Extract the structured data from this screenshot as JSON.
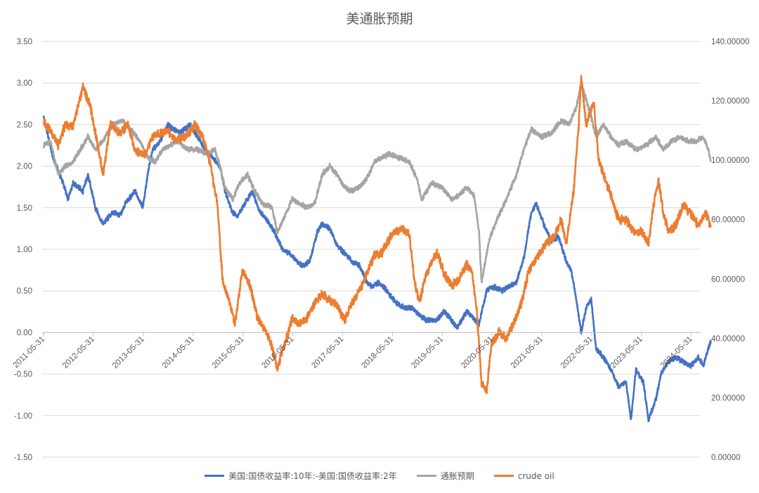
{
  "chart_data": {
    "type": "line",
    "title": "美通胀预期",
    "x_tick_labels": [
      "2011-05-31",
      "2012-05-31",
      "2013-05-31",
      "2014-05-31",
      "2015-05-31",
      "2016-05-31",
      "2017-05-31",
      "2018-05-31",
      "2019-05-31",
      "2020-05-31",
      "2021-05-31",
      "2022-05-31",
      "2023-05-31",
      "2024-05-31"
    ],
    "y_left": {
      "ticks": [
        "3.50",
        "3.00",
        "2.50",
        "2.00",
        "1.50",
        "1.00",
        "0.50",
        "0.00",
        "-0.50",
        "-1.00",
        "-1.50"
      ],
      "ylim": [
        -1.5,
        3.5
      ]
    },
    "y_right": {
      "ticks": [
        "140.00000",
        "120.00000",
        "100.00000",
        "80.00000",
        "60.00000",
        "40.00000",
        "20.00000",
        "0.00000"
      ],
      "ylim": [
        0,
        140
      ]
    },
    "grid": true,
    "legend_position": "bottom",
    "series": [
      {
        "name": "美国:国债收益率:10年:-美国:国债收益率:2年",
        "axis": "left",
        "color": "#4472C4",
        "points": [
          [
            2011.41,
            2.6
          ],
          [
            2011.6,
            2.1
          ],
          [
            2011.8,
            1.8
          ],
          [
            2011.9,
            1.6
          ],
          [
            2012.0,
            1.8
          ],
          [
            2012.2,
            1.7
          ],
          [
            2012.3,
            1.9
          ],
          [
            2012.45,
            1.5
          ],
          [
            2012.6,
            1.3
          ],
          [
            2012.8,
            1.45
          ],
          [
            2012.95,
            1.4
          ],
          [
            2013.05,
            1.55
          ],
          [
            2013.25,
            1.7
          ],
          [
            2013.4,
            1.5
          ],
          [
            2013.5,
            1.9
          ],
          [
            2013.6,
            2.2
          ],
          [
            2013.75,
            2.3
          ],
          [
            2013.9,
            2.5
          ],
          [
            2014.0,
            2.45
          ],
          [
            2014.15,
            2.4
          ],
          [
            2014.35,
            2.5
          ],
          [
            2014.5,
            2.35
          ],
          [
            2014.65,
            2.2
          ],
          [
            2014.8,
            2.1
          ],
          [
            2014.95,
            2.0
          ],
          [
            2015.05,
            1.7
          ],
          [
            2015.2,
            1.45
          ],
          [
            2015.3,
            1.4
          ],
          [
            2015.45,
            1.55
          ],
          [
            2015.6,
            1.7
          ],
          [
            2015.75,
            1.45
          ],
          [
            2015.9,
            1.35
          ],
          [
            2016.05,
            1.2
          ],
          [
            2016.2,
            1.0
          ],
          [
            2016.35,
            0.95
          ],
          [
            2016.5,
            0.85
          ],
          [
            2016.6,
            0.8
          ],
          [
            2016.75,
            0.85
          ],
          [
            2016.9,
            1.2
          ],
          [
            2017.0,
            1.3
          ],
          [
            2017.15,
            1.25
          ],
          [
            2017.3,
            1.05
          ],
          [
            2017.45,
            0.95
          ],
          [
            2017.6,
            0.85
          ],
          [
            2017.75,
            0.8
          ],
          [
            2017.9,
            0.6
          ],
          [
            2018.0,
            0.55
          ],
          [
            2018.15,
            0.6
          ],
          [
            2018.3,
            0.5
          ],
          [
            2018.5,
            0.35
          ],
          [
            2018.65,
            0.3
          ],
          [
            2018.8,
            0.3
          ],
          [
            2018.95,
            0.2
          ],
          [
            2019.1,
            0.15
          ],
          [
            2019.3,
            0.15
          ],
          [
            2019.45,
            0.25
          ],
          [
            2019.6,
            0.15
          ],
          [
            2019.7,
            0.05
          ],
          [
            2019.8,
            0.15
          ],
          [
            2019.9,
            0.25
          ],
          [
            2020.0,
            0.2
          ],
          [
            2020.15,
            0.1
          ],
          [
            2020.3,
            0.5
          ],
          [
            2020.45,
            0.55
          ],
          [
            2020.6,
            0.5
          ],
          [
            2020.75,
            0.55
          ],
          [
            2020.9,
            0.6
          ],
          [
            2021.05,
            0.9
          ],
          [
            2021.2,
            1.45
          ],
          [
            2021.3,
            1.55
          ],
          [
            2021.45,
            1.3
          ],
          [
            2021.6,
            1.1
          ],
          [
            2021.75,
            1.15
          ],
          [
            2021.9,
            0.85
          ],
          [
            2022.0,
            0.75
          ],
          [
            2022.1,
            0.4
          ],
          [
            2022.2,
            0.0
          ],
          [
            2022.3,
            0.3
          ],
          [
            2022.4,
            0.4
          ],
          [
            2022.5,
            -0.2
          ],
          [
            2022.65,
            -0.3
          ],
          [
            2022.8,
            -0.45
          ],
          [
            2022.95,
            -0.65
          ],
          [
            2023.1,
            -0.6
          ],
          [
            2023.2,
            -1.05
          ],
          [
            2023.3,
            -0.45
          ],
          [
            2023.45,
            -0.6
          ],
          [
            2023.55,
            -1.05
          ],
          [
            2023.7,
            -0.8
          ],
          [
            2023.8,
            -0.5
          ],
          [
            2023.95,
            -0.35
          ],
          [
            2024.1,
            -0.3
          ],
          [
            2024.25,
            -0.35
          ],
          [
            2024.4,
            -0.4
          ],
          [
            2024.55,
            -0.3
          ],
          [
            2024.65,
            -0.4
          ],
          [
            2024.75,
            -0.2
          ],
          [
            2024.8,
            -0.1
          ]
        ]
      },
      {
        "name": "通胀预期",
        "axis": "left",
        "color": "#A5A5A5",
        "points": [
          [
            2011.41,
            2.25
          ],
          [
            2011.55,
            2.3
          ],
          [
            2011.7,
            1.9
          ],
          [
            2011.85,
            2.0
          ],
          [
            2012.0,
            2.05
          ],
          [
            2012.15,
            2.2
          ],
          [
            2012.3,
            2.35
          ],
          [
            2012.45,
            2.2
          ],
          [
            2012.6,
            2.3
          ],
          [
            2012.8,
            2.5
          ],
          [
            2013.0,
            2.55
          ],
          [
            2013.15,
            2.45
          ],
          [
            2013.35,
            2.3
          ],
          [
            2013.5,
            2.1
          ],
          [
            2013.65,
            2.05
          ],
          [
            2013.8,
            2.2
          ],
          [
            2013.95,
            2.25
          ],
          [
            2014.1,
            2.3
          ],
          [
            2014.3,
            2.2
          ],
          [
            2014.5,
            2.2
          ],
          [
            2014.7,
            2.15
          ],
          [
            2014.85,
            2.2
          ],
          [
            2014.95,
            2.0
          ],
          [
            2015.05,
            1.75
          ],
          [
            2015.2,
            1.6
          ],
          [
            2015.35,
            1.8
          ],
          [
            2015.5,
            1.9
          ],
          [
            2015.65,
            1.7
          ],
          [
            2015.8,
            1.55
          ],
          [
            2016.0,
            1.5
          ],
          [
            2016.1,
            1.2
          ],
          [
            2016.25,
            1.4
          ],
          [
            2016.4,
            1.6
          ],
          [
            2016.55,
            1.55
          ],
          [
            2016.7,
            1.5
          ],
          [
            2016.85,
            1.55
          ],
          [
            2017.0,
            1.9
          ],
          [
            2017.15,
            2.0
          ],
          [
            2017.3,
            1.9
          ],
          [
            2017.45,
            1.75
          ],
          [
            2017.6,
            1.7
          ],
          [
            2017.75,
            1.75
          ],
          [
            2017.9,
            1.85
          ],
          [
            2018.05,
            2.05
          ],
          [
            2018.2,
            2.1
          ],
          [
            2018.35,
            2.15
          ],
          [
            2018.55,
            2.1
          ],
          [
            2018.75,
            2.05
          ],
          [
            2018.9,
            1.85
          ],
          [
            2019.0,
            1.6
          ],
          [
            2019.2,
            1.8
          ],
          [
            2019.4,
            1.75
          ],
          [
            2019.6,
            1.6
          ],
          [
            2019.75,
            1.65
          ],
          [
            2019.9,
            1.75
          ],
          [
            2020.05,
            1.65
          ],
          [
            2020.15,
            1.2
          ],
          [
            2020.2,
            0.6
          ],
          [
            2020.35,
            1.1
          ],
          [
            2020.5,
            1.35
          ],
          [
            2020.7,
            1.6
          ],
          [
            2020.9,
            1.9
          ],
          [
            2021.05,
            2.2
          ],
          [
            2021.2,
            2.45
          ],
          [
            2021.4,
            2.35
          ],
          [
            2021.6,
            2.4
          ],
          [
            2021.8,
            2.55
          ],
          [
            2021.95,
            2.5
          ],
          [
            2022.1,
            2.7
          ],
          [
            2022.2,
            3.0
          ],
          [
            2022.35,
            2.7
          ],
          [
            2022.5,
            2.35
          ],
          [
            2022.65,
            2.5
          ],
          [
            2022.8,
            2.35
          ],
          [
            2022.95,
            2.25
          ],
          [
            2023.1,
            2.3
          ],
          [
            2023.3,
            2.2
          ],
          [
            2023.5,
            2.25
          ],
          [
            2023.7,
            2.35
          ],
          [
            2023.85,
            2.2
          ],
          [
            2024.0,
            2.3
          ],
          [
            2024.2,
            2.35
          ],
          [
            2024.35,
            2.3
          ],
          [
            2024.5,
            2.3
          ],
          [
            2024.65,
            2.35
          ],
          [
            2024.75,
            2.2
          ],
          [
            2024.8,
            2.05
          ]
        ]
      },
      {
        "name": "crude oil",
        "axis": "right",
        "color": "#ED7D31",
        "points": [
          [
            2011.41,
            113
          ],
          [
            2011.55,
            110
          ],
          [
            2011.7,
            105
          ],
          [
            2011.85,
            112
          ],
          [
            2012.0,
            111
          ],
          [
            2012.2,
            125
          ],
          [
            2012.35,
            118
          ],
          [
            2012.5,
            105
          ],
          [
            2012.6,
            95
          ],
          [
            2012.75,
            112
          ],
          [
            2012.95,
            109
          ],
          [
            2013.1,
            112
          ],
          [
            2013.25,
            103
          ],
          [
            2013.45,
            102
          ],
          [
            2013.6,
            108
          ],
          [
            2013.75,
            109
          ],
          [
            2013.9,
            110
          ],
          [
            2014.05,
            107
          ],
          [
            2014.25,
            108
          ],
          [
            2014.45,
            112
          ],
          [
            2014.6,
            108
          ],
          [
            2014.75,
            99
          ],
          [
            2014.9,
            85
          ],
          [
            2015.0,
            60
          ],
          [
            2015.1,
            55
          ],
          [
            2015.25,
            45
          ],
          [
            2015.4,
            63
          ],
          [
            2015.55,
            58
          ],
          [
            2015.7,
            47
          ],
          [
            2015.85,
            43
          ],
          [
            2016.0,
            37
          ],
          [
            2016.1,
            30
          ],
          [
            2016.25,
            38
          ],
          [
            2016.4,
            47
          ],
          [
            2016.55,
            45
          ],
          [
            2016.7,
            47
          ],
          [
            2016.85,
            52
          ],
          [
            2017.0,
            55
          ],
          [
            2017.15,
            53
          ],
          [
            2017.3,
            51
          ],
          [
            2017.45,
            46
          ],
          [
            2017.6,
            52
          ],
          [
            2017.75,
            56
          ],
          [
            2017.9,
            62
          ],
          [
            2018.05,
            68
          ],
          [
            2018.2,
            69
          ],
          [
            2018.4,
            75
          ],
          [
            2018.6,
            77
          ],
          [
            2018.75,
            75
          ],
          [
            2018.85,
            60
          ],
          [
            2018.95,
            52
          ],
          [
            2019.1,
            62
          ],
          [
            2019.3,
            69
          ],
          [
            2019.45,
            62
          ],
          [
            2019.6,
            58
          ],
          [
            2019.75,
            60
          ],
          [
            2019.9,
            65
          ],
          [
            2020.0,
            63
          ],
          [
            2020.1,
            50
          ],
          [
            2020.2,
            25
          ],
          [
            2020.3,
            22
          ],
          [
            2020.4,
            38
          ],
          [
            2020.55,
            42
          ],
          [
            2020.7,
            40
          ],
          [
            2020.85,
            45
          ],
          [
            2021.0,
            52
          ],
          [
            2021.15,
            63
          ],
          [
            2021.35,
            68
          ],
          [
            2021.5,
            72
          ],
          [
            2021.65,
            74
          ],
          [
            2021.8,
            80
          ],
          [
            2021.9,
            72
          ],
          [
            2022.05,
            90
          ],
          [
            2022.15,
            112
          ],
          [
            2022.2,
            128
          ],
          [
            2022.3,
            112
          ],
          [
            2022.45,
            120
          ],
          [
            2022.55,
            100
          ],
          [
            2022.65,
            95
          ],
          [
            2022.8,
            88
          ],
          [
            2022.95,
            80
          ],
          [
            2023.1,
            80
          ],
          [
            2023.25,
            76
          ],
          [
            2023.4,
            76
          ],
          [
            2023.55,
            72
          ],
          [
            2023.65,
            85
          ],
          [
            2023.75,
            93
          ],
          [
            2023.85,
            82
          ],
          [
            2023.95,
            76
          ],
          [
            2024.1,
            78
          ],
          [
            2024.25,
            85
          ],
          [
            2024.4,
            82
          ],
          [
            2024.55,
            78
          ],
          [
            2024.7,
            82
          ],
          [
            2024.8,
            78
          ]
        ]
      }
    ]
  }
}
